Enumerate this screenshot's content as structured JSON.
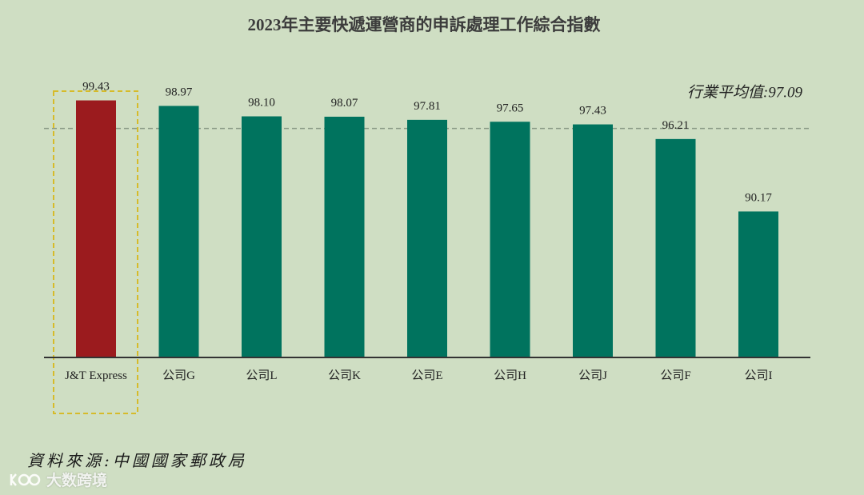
{
  "chart_data": {
    "type": "bar",
    "title": "2023年主要快遞運營商的申訴處理工作綜合指數",
    "categories": [
      "J&T Express",
      "公司G",
      "公司L",
      "公司K",
      "公司E",
      "公司H",
      "公司J",
      "公司F",
      "公司I"
    ],
    "values": [
      99.43,
      98.97,
      98.1,
      98.07,
      97.81,
      97.65,
      97.43,
      96.21,
      90.17
    ],
    "value_labels": [
      "99.43",
      "98.97",
      "98.10",
      "98.07",
      "97.81",
      "97.65",
      "97.43",
      "96.21",
      "90.17"
    ],
    "highlight_index": 0,
    "average": {
      "label": "行業平均值:97.09",
      "value": 97.09
    },
    "ylim": [
      78,
      100
    ],
    "grid": false,
    "colors": {
      "highlight": "#9b1b1e",
      "bar": "#00735e",
      "average_line": "#8a9a86",
      "highlight_box": "#d6bb2a",
      "axis": "#333333"
    }
  },
  "source": "資料來源:中國國家郵政局",
  "watermark": {
    "logo": "logo-icon",
    "text": "大数跨境"
  }
}
